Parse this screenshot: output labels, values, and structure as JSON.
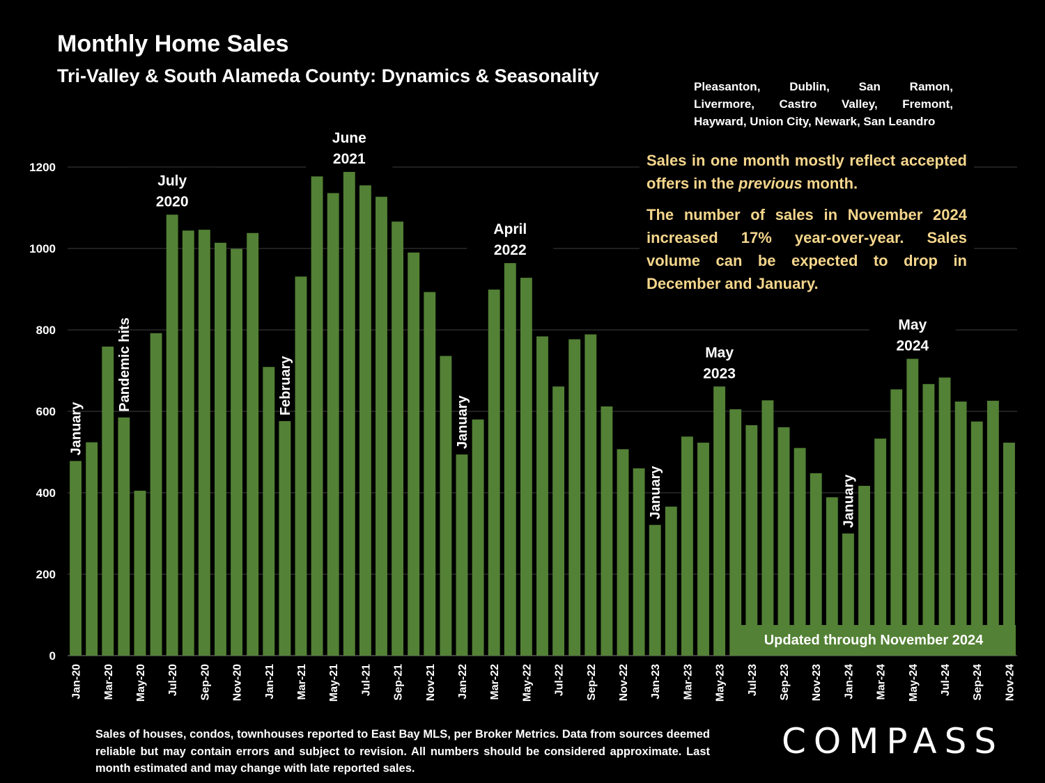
{
  "header": {
    "title": "Monthly Home Sales",
    "subtitle": "Tri-Valley & South Alameda County: Dynamics & Seasonality"
  },
  "cities": {
    "line1": "Pleasanton, Dublin, San Ramon,",
    "line2": "Livermore, Castro Valley, Fremont,",
    "line3": "Hayward, Union City, Newark, San Leandro"
  },
  "notes": {
    "note1_pre": "Sales in one month mostly reflect accepted offers in the ",
    "note1_em": "previous",
    "note1_post": " month.",
    "note2": "The number of sales in November 2024 increased 17% year-over-year. Sales volume can be expected to drop in December and January."
  },
  "badge": {
    "text": "Updated through November 2024"
  },
  "footnote": "Sales of houses, condos, townhouses reported to East Bay MLS, per Broker Metrics. Data from sources deemed reliable but may contain errors and subject to revision. All numbers should be considered approximate.  Last month estimated and may change with late reported sales.",
  "logo": {
    "text": "COMPASS"
  },
  "colors": {
    "bar": "#538135",
    "grid": "#404040",
    "background": "#000000",
    "note": "#f5d68c"
  },
  "chart_data": {
    "type": "bar",
    "ylim": [
      0,
      1200
    ],
    "yticks": [
      0,
      200,
      400,
      600,
      800,
      1000,
      1200
    ],
    "grid": true,
    "categories": [
      "Jan-20",
      "Feb-20",
      "Mar-20",
      "Apr-20",
      "May-20",
      "Jun-20",
      "Jul-20",
      "Aug-20",
      "Sep-20",
      "Oct-20",
      "Nov-20",
      "Dec-20",
      "Jan-21",
      "Feb-21",
      "Mar-21",
      "Apr-21",
      "May-21",
      "Jun-21",
      "Jul-21",
      "Aug-21",
      "Sep-21",
      "Oct-21",
      "Nov-21",
      "Dec-21",
      "Jan-22",
      "Feb-22",
      "Mar-22",
      "Apr-22",
      "May-22",
      "Jun-22",
      "Jul-22",
      "Aug-22",
      "Sep-22",
      "Oct-22",
      "Nov-22",
      "Dec-22",
      "Jan-23",
      "Feb-23",
      "Mar-23",
      "Apr-23",
      "May-23",
      "Jun-23",
      "Jul-23",
      "Aug-23",
      "Sep-23",
      "Oct-23",
      "Nov-23",
      "Dec-23",
      "Jan-24",
      "Feb-24",
      "Mar-24",
      "Apr-24",
      "May-24",
      "Jun-24",
      "Jul-24",
      "Aug-24",
      "Sep-24",
      "Oct-24",
      "Nov-24"
    ],
    "x_tick_labels": [
      "Jan-20",
      "",
      "Mar-20",
      "",
      "May-20",
      "",
      "Jul-20",
      "",
      "Sep-20",
      "",
      "Nov-20",
      "",
      "Jan-21",
      "",
      "Mar-21",
      "",
      "May-21",
      "",
      "Jul-21",
      "",
      "Sep-21",
      "",
      "Nov-21",
      "",
      "Jan-22",
      "",
      "Mar-22",
      "",
      "May-22",
      "",
      "Jul-22",
      "",
      "Sep-22",
      "",
      "Nov-22",
      "",
      "Jan-23",
      "",
      "Mar-23",
      "",
      "May-23",
      "",
      "Jul-23",
      "",
      "Sep-23",
      "",
      "Nov-23",
      "",
      "Jan-24",
      "",
      "Mar-24",
      "",
      "May-24",
      "",
      "Jul-24",
      "",
      "Sep-24",
      "",
      "Nov-24"
    ],
    "values": [
      478,
      524,
      759,
      585,
      405,
      792,
      1083,
      1044,
      1046,
      1014,
      999,
      1038,
      709,
      576,
      931,
      1177,
      1136,
      1188,
      1155,
      1127,
      1066,
      990,
      893,
      736,
      494,
      580,
      899,
      964,
      928,
      784,
      661,
      777,
      789,
      612,
      507,
      460,
      321,
      366,
      538,
      523,
      661,
      605,
      566,
      627,
      561,
      510,
      448,
      389,
      300,
      417,
      533,
      654,
      729,
      667,
      683,
      624,
      575,
      626,
      523
    ],
    "annotations": [
      {
        "text": "January",
        "index": 0,
        "rotated": true
      },
      {
        "text": "Pandemic hits",
        "index": 3,
        "rotated": true
      },
      {
        "text": "July 2020",
        "index": 6,
        "rotated": false
      },
      {
        "text": "February",
        "index": 13,
        "rotated": true
      },
      {
        "text": "June 2021",
        "index": 17,
        "rotated": false
      },
      {
        "text": "January",
        "index": 24,
        "rotated": true
      },
      {
        "text": "April 2022",
        "index": 27,
        "rotated": false
      },
      {
        "text": "January",
        "index": 36,
        "rotated": true
      },
      {
        "text": "May 2023",
        "index": 40,
        "rotated": false
      },
      {
        "text": "January",
        "index": 48,
        "rotated": true
      },
      {
        "text": "May 2024",
        "index": 52,
        "rotated": false
      }
    ]
  }
}
